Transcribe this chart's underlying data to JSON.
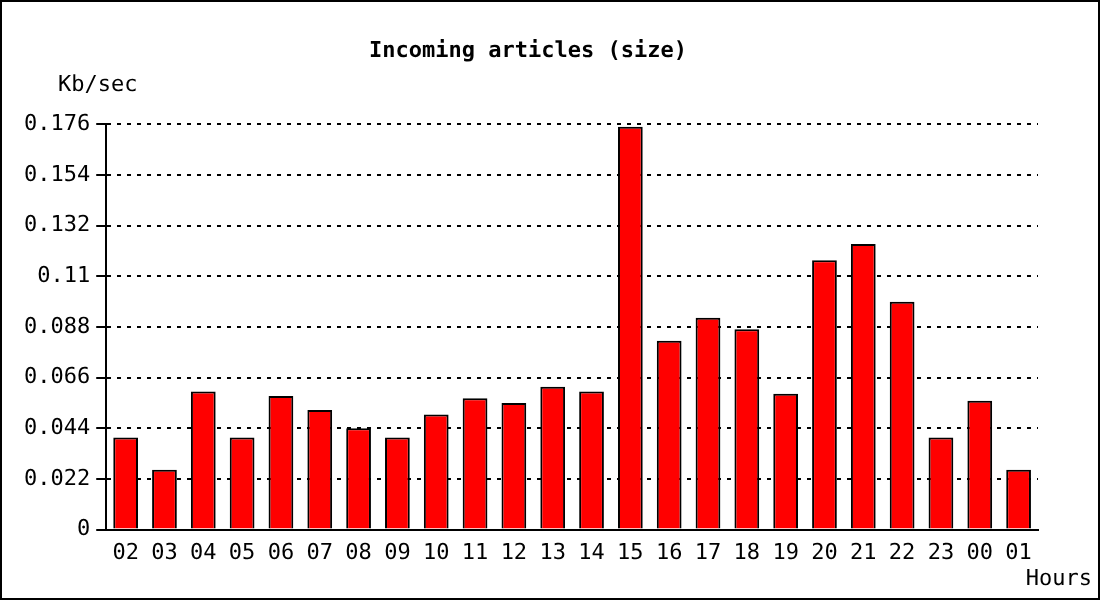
{
  "chart_data": {
    "type": "bar",
    "title": "Incoming articles (size)",
    "ylabel": "Kb/sec",
    "xlabel": "Hours",
    "categories": [
      "02",
      "03",
      "04",
      "05",
      "06",
      "07",
      "08",
      "09",
      "10",
      "11",
      "12",
      "13",
      "14",
      "15",
      "16",
      "17",
      "18",
      "19",
      "20",
      "21",
      "22",
      "23",
      "00",
      "01"
    ],
    "values": [
      0.04,
      0.026,
      0.06,
      0.04,
      0.058,
      0.052,
      0.044,
      0.04,
      0.05,
      0.057,
      0.055,
      0.062,
      0.06,
      0.175,
      0.082,
      0.092,
      0.087,
      0.059,
      0.117,
      0.124,
      0.099,
      0.04,
      0.056,
      0.026
    ],
    "color": "#ff0000",
    "ylim": [
      0,
      0.176
    ],
    "yticks": [
      0,
      0.022,
      0.044,
      0.066,
      0.088,
      0.11,
      0.132,
      0.154,
      0.176
    ],
    "grid": "y"
  }
}
